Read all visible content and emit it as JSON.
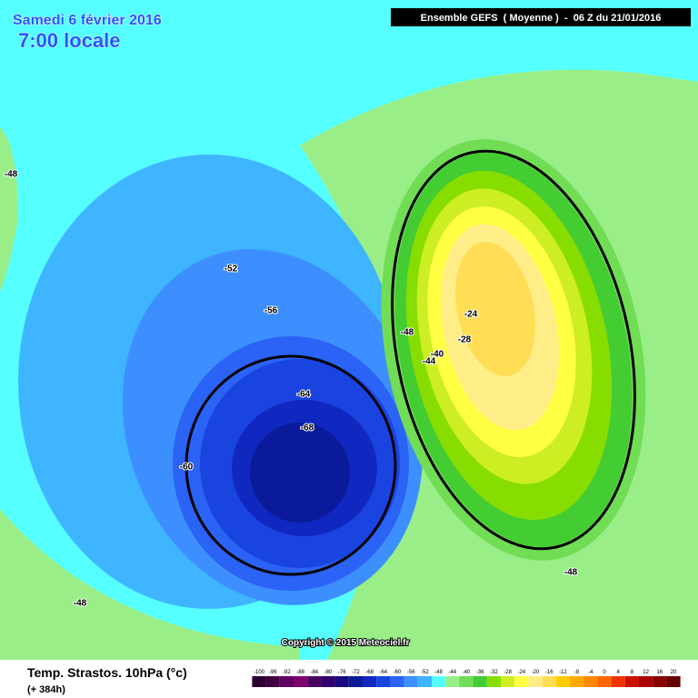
{
  "header": {
    "date": "Samedi 6 février 2016",
    "time": "7:00 locale",
    "run": "Ensemble GEFS  ( Moyenne )  -  06 Z du 21/01/2016"
  },
  "map": {
    "contour_labels": [
      "-48",
      "-52",
      "-56",
      "-60",
      "-64",
      "-68",
      "-48",
      "-24",
      "-28",
      "-40",
      "-44",
      "-48",
      "-48"
    ]
  },
  "copyright": "Copyright © 2015 Meteociel.fr",
  "footer": {
    "title": "Temp. Strastos. 10hPa (°c)",
    "lead": "(+ 384h)"
  },
  "legend": {
    "labels": [
      "-100",
      "-96",
      "-92",
      "-88",
      "-84",
      "-80",
      "-76",
      "-72",
      "-68",
      "-64",
      "-60",
      "-56",
      "-52",
      "-48",
      "-44",
      "-40",
      "-36",
      "-32",
      "-28",
      "-24",
      "-20",
      "-16",
      "-12",
      "-8",
      "-4",
      "0",
      "4",
      "8",
      "12",
      "16",
      "20"
    ],
    "colors": [
      "#2a0030",
      "#400040",
      "#600060",
      "#800070",
      "#4a0060",
      "#300070",
      "#1a0a80",
      "#0a1a9a",
      "#1028c0",
      "#1a44e0",
      "#2a63f5",
      "#3d8fff",
      "#3fb5ff",
      "#55ffff",
      "#9aee88",
      "#70dd55",
      "#44cc33",
      "#88dd00",
      "#ccee22",
      "#ffff44",
      "#ffee88",
      "#ffdd55",
      "#ffcc00",
      "#ffaa00",
      "#ff8800",
      "#ff6600",
      "#ee3300",
      "#cc1100",
      "#aa0000",
      "#880000",
      "#660000"
    ]
  }
}
